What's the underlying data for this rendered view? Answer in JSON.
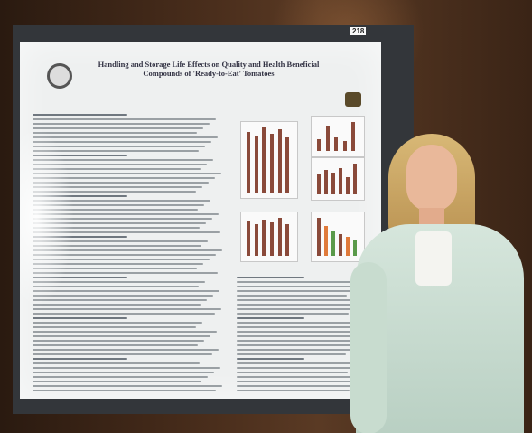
{
  "photo": {
    "scene": "poster-session-photo"
  },
  "poster": {
    "title_line1": "Handling and Storage Life Effects on Quality and Health Beneficial",
    "title_line2": "Compounds of 'Ready-to-Eat' Tomatoes",
    "board_number": "218",
    "colors": {
      "board": "#33363a",
      "poster": "#eef0f0",
      "bar_brown": "#8a4a3a",
      "bar_orange": "#e07a3a",
      "bar_green": "#5a9a4a"
    }
  },
  "charts": [
    {
      "id": "chart-1",
      "values": [
        30,
        28,
        32,
        29,
        31,
        27
      ]
    },
    {
      "id": "chart-2",
      "values": [
        12,
        26,
        14,
        10,
        30
      ]
    },
    {
      "id": "chart-3",
      "values": [
        18,
        22,
        20,
        24,
        16,
        28
      ]
    },
    {
      "id": "chart-4",
      "values": [
        22,
        20,
        23,
        21,
        24,
        20
      ]
    },
    {
      "id": "chart-5",
      "values": [
        28,
        22,
        18,
        16,
        14,
        12
      ]
    }
  ]
}
